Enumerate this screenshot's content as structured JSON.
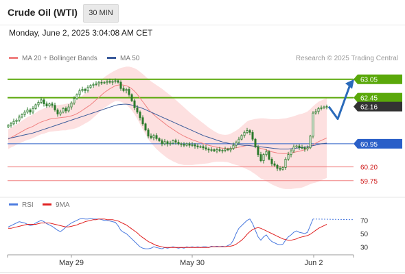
{
  "header": {
    "title": "Crude Oil (WTI)",
    "timeframe": "30 MIN",
    "datetime": "Monday, June 2, 2025 3:04:08 AM CET"
  },
  "legend": {
    "ma20_label": "MA 20 + Bollinger Bands",
    "ma50_label": "MA 50",
    "credit": "Research © 2025 Trading Central",
    "rsi_label": "RSI",
    "rsi_ma_label": "9MA"
  },
  "colors": {
    "bollinger_fill": "#fde0e0",
    "ma20": "#f08080",
    "ma50": "#3a5a9a",
    "candle": "#2a7a2a",
    "resistance": "#5aa80a",
    "pivot": "#2a5fc8",
    "support": "#f08080",
    "support_text": "#d02020",
    "current": "#333333",
    "rsi": "#4a7adf",
    "rsi_ma": "#e02020",
    "arrow": "#2a6aba"
  },
  "chart_data": [
    {
      "type": "candlestick",
      "title": "Crude Oil (WTI)",
      "timeframe": "30 MIN",
      "x_labels": [
        "May 29",
        "May 30",
        "Jun 2"
      ],
      "ylim": [
        59.5,
        63.4
      ],
      "levels": [
        {
          "kind": "resistance",
          "value": 63.05,
          "label": "63.05"
        },
        {
          "kind": "resistance",
          "value": 62.45,
          "label": "62.45"
        },
        {
          "kind": "current",
          "value": 62.16,
          "label": "62.16"
        },
        {
          "kind": "pivot",
          "value": 60.95,
          "label": "60.95"
        },
        {
          "kind": "support",
          "value": 60.2,
          "label": "60.20"
        },
        {
          "kind": "support",
          "value": 59.75,
          "label": "59.75"
        }
      ],
      "close": [
        61.55,
        61.6,
        61.68,
        61.72,
        61.82,
        61.9,
        61.98,
        62.05,
        61.98,
        62.1,
        62.22,
        62.3,
        62.38,
        62.25,
        62.18,
        62.25,
        62.2,
        62.05,
        61.92,
        61.98,
        62.1,
        62.02,
        62.15,
        62.28,
        62.42,
        62.55,
        62.68,
        62.72,
        62.68,
        62.78,
        62.85,
        62.88,
        62.9,
        62.95,
        62.93,
        62.95,
        62.98,
        62.95,
        62.98,
        63.0,
        62.95,
        62.75,
        62.68,
        62.72,
        62.55,
        62.35,
        62.12,
        61.98,
        61.8,
        61.6,
        61.4,
        61.2,
        61.15,
        61.22,
        61.12,
        61.05,
        60.95,
        61.02,
        60.95,
        60.97,
        61.05,
        61.0,
        60.95,
        60.93,
        60.9,
        60.95,
        60.9,
        60.92,
        60.88,
        60.85,
        60.86,
        60.82,
        60.78,
        60.75,
        60.76,
        60.72,
        60.76,
        60.73,
        60.74,
        60.78,
        60.75,
        60.8,
        60.9,
        61.0,
        61.1,
        61.22,
        61.32,
        61.38,
        61.32,
        61.1,
        60.85,
        60.6,
        60.4,
        60.6,
        60.7,
        60.45,
        60.3,
        60.25,
        60.15,
        60.12,
        60.18,
        60.45,
        60.6,
        60.72,
        60.85,
        60.88,
        60.83,
        60.82,
        60.78,
        60.82,
        61.2,
        61.95,
        62.0,
        62.1,
        62.12,
        62.15,
        62.16
      ],
      "ma20": [
        61.1,
        61.15,
        61.2,
        61.25,
        61.3,
        61.35,
        61.4,
        61.45,
        61.48,
        61.52,
        61.57,
        61.62,
        61.66,
        61.69,
        61.72,
        61.75,
        61.77,
        61.78,
        61.79,
        61.8,
        61.81,
        61.82,
        61.84,
        61.86,
        61.89,
        61.93,
        61.98,
        62.04,
        62.1,
        62.16,
        62.22,
        62.3,
        62.38,
        62.46,
        62.54,
        62.62,
        62.68,
        62.74,
        62.79,
        62.84,
        62.86,
        62.87,
        62.86,
        62.84,
        62.8,
        62.74,
        62.66,
        62.56,
        62.44,
        62.32,
        62.2,
        62.08,
        61.98,
        61.9,
        61.82,
        61.75,
        61.68,
        61.61,
        61.54,
        61.48,
        61.42,
        61.36,
        61.3,
        61.25,
        61.2,
        61.16,
        61.12,
        61.08,
        61.05,
        61.02,
        60.99,
        60.96,
        60.93,
        60.9,
        60.88,
        60.86,
        60.84,
        60.82,
        60.81,
        60.8,
        60.8,
        60.8,
        60.81,
        60.82,
        60.84,
        60.86,
        60.88,
        60.9,
        60.9,
        60.88,
        60.86,
        60.83,
        60.8,
        60.78,
        60.75,
        60.72,
        60.69,
        60.67,
        60.65,
        60.64,
        60.63,
        60.63,
        60.64,
        60.65,
        60.67,
        60.69,
        60.71,
        60.73,
        60.76,
        60.8,
        60.86,
        60.92,
        60.97,
        61.02,
        61.06,
        61.1,
        61.14
      ],
      "ma50": [
        61.12,
        61.14,
        61.16,
        61.18,
        61.2,
        61.22,
        61.24,
        61.26,
        61.28,
        61.3,
        61.33,
        61.36,
        61.39,
        61.42,
        61.45,
        61.48,
        61.51,
        61.54,
        61.57,
        61.6,
        61.63,
        61.66,
        61.69,
        61.72,
        61.75,
        61.78,
        61.81,
        61.84,
        61.87,
        61.9,
        61.93,
        61.96,
        61.99,
        62.02,
        62.05,
        62.08,
        62.11,
        62.14,
        62.17,
        62.2,
        62.22,
        62.23,
        62.24,
        62.24,
        62.23,
        62.21,
        62.19,
        62.16,
        62.13,
        62.1,
        62.06,
        62.02,
        61.98,
        61.94,
        61.9,
        61.86,
        61.82,
        61.78,
        61.74,
        61.7,
        61.66,
        61.62,
        61.58,
        61.54,
        61.5,
        61.46,
        61.42,
        61.38,
        61.34,
        61.3,
        61.26,
        61.22,
        61.19,
        61.16,
        61.13,
        61.1,
        61.07,
        61.04,
        61.01,
        60.99,
        60.97,
        60.95,
        60.94,
        60.93,
        60.92,
        60.91,
        60.9,
        60.9,
        60.89,
        60.88,
        60.87,
        60.86,
        60.85,
        60.84,
        60.83,
        60.82,
        60.81,
        60.8,
        60.79,
        60.78,
        60.78,
        60.78,
        60.78,
        60.79,
        60.8,
        60.81,
        60.82,
        60.83,
        60.84,
        60.85,
        60.87,
        60.89,
        60.91,
        60.93,
        60.95,
        60.96,
        60.97
      ],
      "bb_width": [
        0.32,
        0.32,
        0.33,
        0.33,
        0.34,
        0.35,
        0.36,
        0.37,
        0.38,
        0.38,
        0.39,
        0.4,
        0.4,
        0.41,
        0.41,
        0.41,
        0.42,
        0.42,
        0.42,
        0.42,
        0.42,
        0.43,
        0.43,
        0.44,
        0.45,
        0.46,
        0.47,
        0.48,
        0.49,
        0.5,
        0.5,
        0.5,
        0.5,
        0.5,
        0.5,
        0.5,
        0.5,
        0.5,
        0.5,
        0.5,
        0.52,
        0.55,
        0.58,
        0.62,
        0.66,
        0.7,
        0.75,
        0.8,
        0.85,
        0.9,
        0.94,
        0.98,
        1.0,
        1.02,
        1.04,
        1.05,
        1.06,
        1.06,
        1.06,
        1.05,
        1.04,
        1.02,
        1.0,
        0.97,
        0.94,
        0.9,
        0.86,
        0.82,
        0.78,
        0.74,
        0.7,
        0.66,
        0.62,
        0.58,
        0.54,
        0.5,
        0.47,
        0.45,
        0.44,
        0.44,
        0.45,
        0.48,
        0.52,
        0.56,
        0.6,
        0.66,
        0.72,
        0.78,
        0.82,
        0.86,
        0.9,
        0.94,
        0.98,
        1.0,
        1.02,
        1.04,
        1.06,
        1.08,
        1.1,
        1.12,
        1.14,
        1.15,
        1.16,
        1.17,
        1.18,
        1.19,
        1.2,
        1.2,
        1.2,
        1.2,
        1.22,
        1.25,
        1.28,
        1.3,
        1.3,
        1.3,
        1.3
      ]
    },
    {
      "type": "line",
      "title": "RSI",
      "ylim": [
        20,
        80
      ],
      "y_ticks": [
        70,
        50,
        30
      ],
      "series": [
        {
          "name": "RSI",
          "values": [
            60,
            62,
            64,
            66,
            68,
            67,
            66,
            64,
            62,
            63,
            66,
            68,
            70,
            68,
            65,
            63,
            61,
            58,
            55,
            53,
            56,
            60,
            63,
            66,
            68,
            70,
            72,
            73,
            72,
            72,
            73,
            72,
            72,
            72,
            71,
            70,
            70,
            69,
            68,
            67,
            62,
            55,
            52,
            50,
            46,
            42,
            38,
            34,
            30,
            28,
            27,
            27,
            28,
            30,
            29,
            28,
            27,
            29,
            28,
            29,
            30,
            29,
            28,
            29,
            28,
            30,
            29,
            30,
            29,
            30,
            29,
            30,
            30,
            29,
            31,
            30,
            31,
            30,
            31,
            30,
            32,
            34,
            40,
            50,
            58,
            62,
            66,
            70,
            72,
            65,
            55,
            45,
            40,
            45,
            48,
            42,
            38,
            36,
            34,
            33,
            34,
            40,
            45,
            48,
            52,
            54,
            52,
            51,
            50,
            52,
            62,
            72,
            73,
            73,
            74,
            74,
            74
          ],
          "dotted_tail_from": 112
        },
        {
          "name": "9MA",
          "values": [
            58,
            58,
            59,
            60,
            61,
            62,
            63,
            64,
            64,
            64,
            64,
            65,
            66,
            66,
            66,
            66,
            65,
            64,
            63,
            62,
            61,
            60,
            60,
            61,
            62,
            63,
            65,
            66,
            68,
            69,
            70,
            71,
            71,
            72,
            72,
            72,
            71,
            71,
            71,
            70,
            69,
            67,
            65,
            63,
            60,
            57,
            54,
            51,
            47,
            44,
            41,
            38,
            36,
            34,
            32,
            31,
            30,
            29,
            29,
            29,
            29,
            29,
            29,
            29,
            29,
            29,
            29,
            29,
            29,
            29,
            29,
            29,
            29,
            29,
            30,
            30,
            30,
            30,
            30,
            30,
            31,
            31,
            32,
            34,
            37,
            40,
            44,
            49,
            53,
            56,
            58,
            59,
            58,
            56,
            54,
            52,
            50,
            48,
            46,
            44,
            42,
            41,
            40,
            40,
            41,
            42,
            44,
            45,
            46,
            47,
            49,
            52,
            55,
            58,
            60,
            62,
            64
          ]
        }
      ]
    }
  ]
}
